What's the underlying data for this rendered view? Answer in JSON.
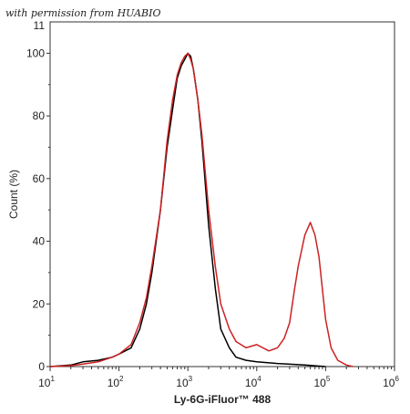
{
  "watermark": "with permission from HUABIO",
  "chart_data": {
    "type": "line",
    "xlabel": "Ly-6G-iFluor™ 488",
    "ylabel": "Count  (%)",
    "x_scale": "log",
    "xlim": [
      10,
      1000000
    ],
    "ylim": [
      0,
      110
    ],
    "x_ticks": [
      {
        "base": "10",
        "exp": "1"
      },
      {
        "base": "10",
        "exp": "2"
      },
      {
        "base": "10",
        "exp": "3"
      },
      {
        "base": "10",
        "exp": "4"
      },
      {
        "base": "10",
        "exp": "5"
      },
      {
        "base": "10",
        "exp": "6"
      }
    ],
    "y_ticks": [
      "0",
      "20",
      "40",
      "60",
      "80",
      "100"
    ],
    "y_top_partial": "11",
    "series": [
      {
        "color": "#000000",
        "points": [
          [
            10,
            0
          ],
          [
            20,
            0.5
          ],
          [
            30,
            1.5
          ],
          [
            50,
            2
          ],
          [
            80,
            3
          ],
          [
            100,
            4
          ],
          [
            150,
            6
          ],
          [
            200,
            12
          ],
          [
            250,
            20
          ],
          [
            300,
            30
          ],
          [
            400,
            50
          ],
          [
            500,
            70
          ],
          [
            600,
            82
          ],
          [
            700,
            92
          ],
          [
            800,
            96
          ],
          [
            900,
            98
          ],
          [
            1000,
            100
          ],
          [
            1100,
            99
          ],
          [
            1200,
            95
          ],
          [
            1400,
            85
          ],
          [
            1600,
            72
          ],
          [
            2000,
            45
          ],
          [
            2500,
            25
          ],
          [
            3000,
            12
          ],
          [
            4000,
            6
          ],
          [
            5000,
            3
          ],
          [
            7000,
            2
          ],
          [
            10000,
            1.5
          ],
          [
            20000,
            1
          ],
          [
            50000,
            0.5
          ],
          [
            100000,
            0
          ]
        ]
      },
      {
        "color": "#cc2222",
        "points": [
          [
            10,
            0
          ],
          [
            20,
            0.3
          ],
          [
            30,
            0.8
          ],
          [
            50,
            1.5
          ],
          [
            80,
            3
          ],
          [
            100,
            4
          ],
          [
            150,
            7
          ],
          [
            200,
            14
          ],
          [
            250,
            22
          ],
          [
            300,
            32
          ],
          [
            400,
            50
          ],
          [
            500,
            72
          ],
          [
            600,
            85
          ],
          [
            700,
            93
          ],
          [
            800,
            97
          ],
          [
            900,
            99
          ],
          [
            1000,
            100
          ],
          [
            1100,
            98
          ],
          [
            1200,
            95
          ],
          [
            1400,
            85
          ],
          [
            1600,
            74
          ],
          [
            2000,
            50
          ],
          [
            2500,
            32
          ],
          [
            3000,
            20
          ],
          [
            4000,
            12
          ],
          [
            5000,
            8
          ],
          [
            7000,
            6
          ],
          [
            10000,
            7
          ],
          [
            15000,
            5
          ],
          [
            20000,
            6
          ],
          [
            25000,
            9
          ],
          [
            30000,
            14
          ],
          [
            35000,
            24
          ],
          [
            40000,
            32
          ],
          [
            50000,
            42
          ],
          [
            60000,
            46
          ],
          [
            70000,
            42
          ],
          [
            80000,
            35
          ],
          [
            100000,
            15
          ],
          [
            120000,
            6
          ],
          [
            150000,
            2
          ],
          [
            200000,
            0.5
          ],
          [
            250000,
            0
          ]
        ]
      }
    ]
  }
}
